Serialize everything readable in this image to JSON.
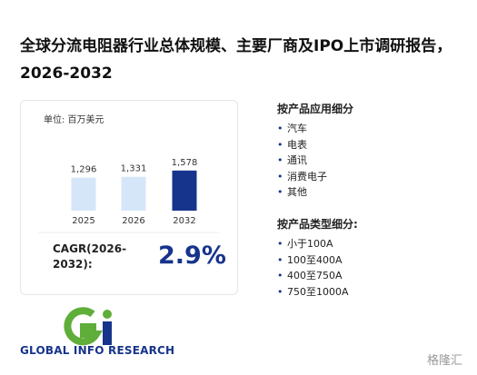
{
  "header": {
    "title": "全球分流电阻器行业总体规模、主要厂商及IPO上市调研报告，2026-2032"
  },
  "chart_data": {
    "type": "bar",
    "unit_label": "单位: 百万美元",
    "categories": [
      "2025",
      "2026",
      "2032"
    ],
    "values": [
      1296,
      1331,
      1578
    ],
    "value_labels": [
      "1,296",
      "1,331",
      "1,578"
    ],
    "colors": [
      "#d5e6f8",
      "#d5e6f8",
      "#17348c"
    ]
  },
  "cagr": {
    "label": "CAGR(2026-2032):",
    "value": "2.9%"
  },
  "segments": [
    {
      "title": "按产品应用细分",
      "items": [
        "汽车",
        "电表",
        "通讯",
        "消费电子",
        "其他"
      ]
    },
    {
      "title": "按产品类型细分:",
      "items": [
        "小于100A",
        "100至400A",
        "400至750A",
        "750至1000A"
      ]
    }
  ],
  "logo": "GLOBAL INFO RESEARCH",
  "watermark": "格隆汇"
}
